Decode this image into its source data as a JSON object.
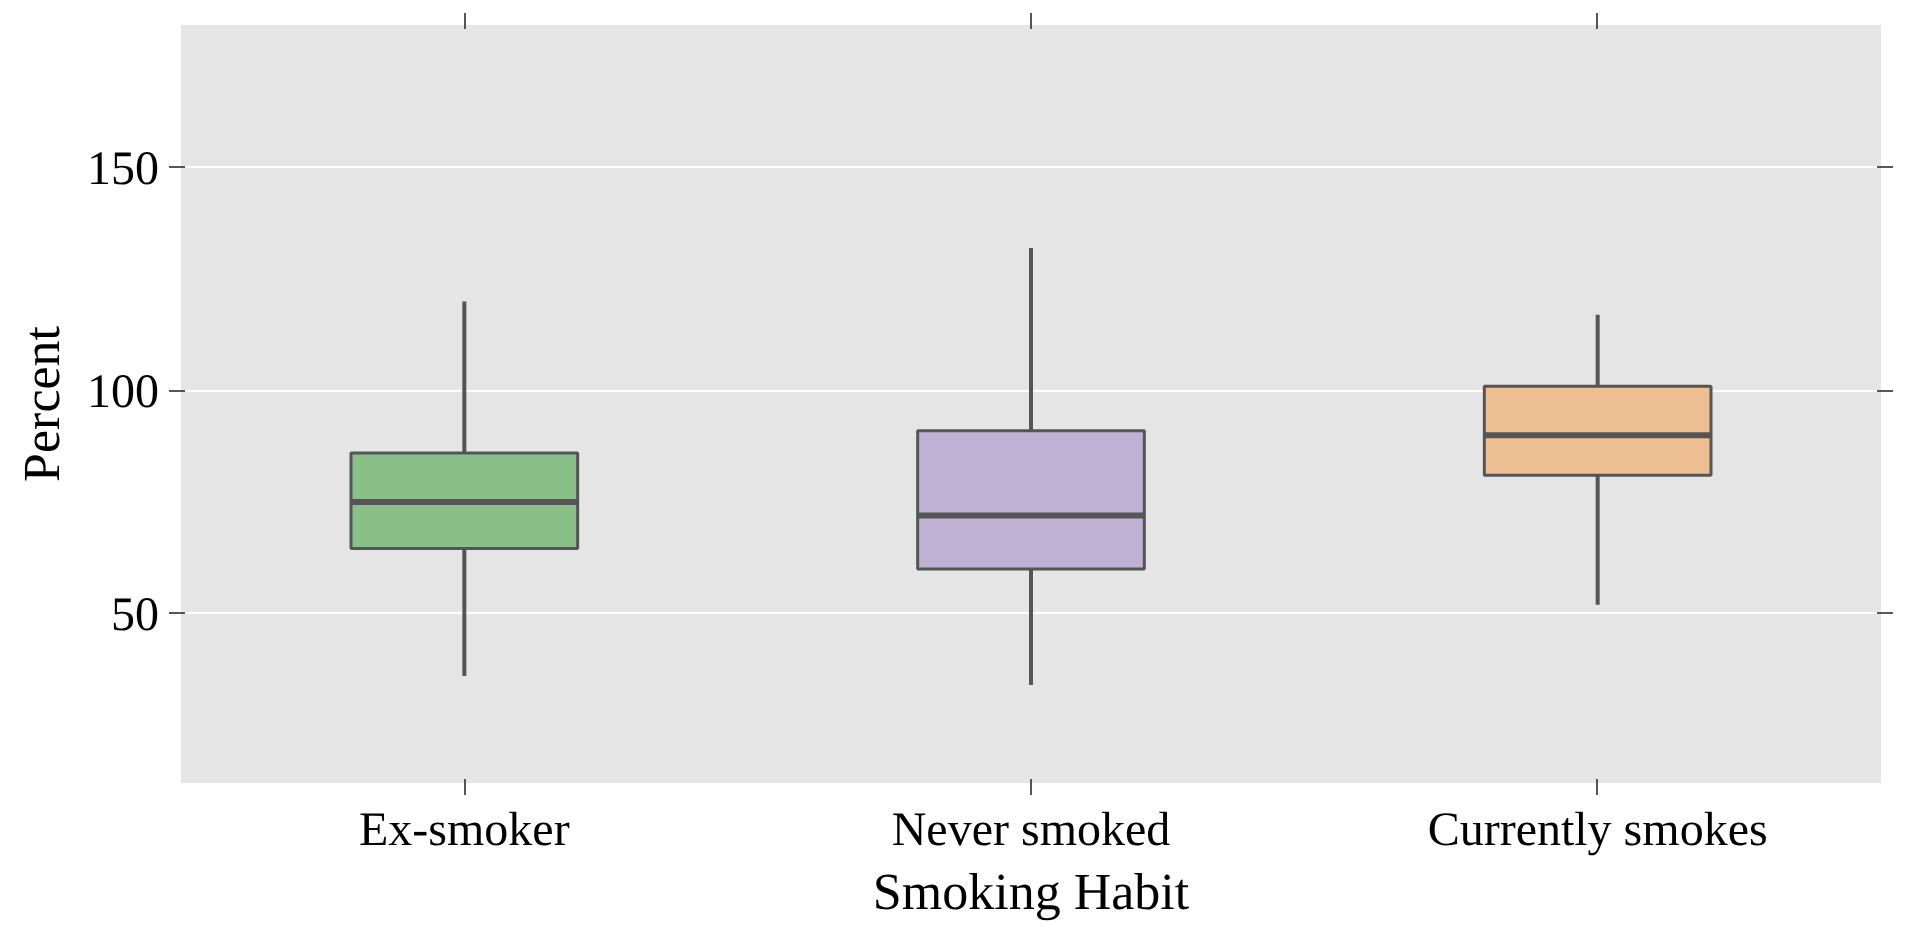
{
  "chart_data": {
    "type": "box",
    "xlabel": "Smoking Habit",
    "ylabel": "Percent",
    "categories": [
      "Ex-smoker",
      "Never smoked",
      "Currently smokes"
    ],
    "colors": [
      "#88c088",
      "#bfb1d4",
      "#eebf93"
    ],
    "boxes": [
      {
        "low": 36,
        "q1": 64.6,
        "median": 75,
        "q3": 86,
        "high": 120
      },
      {
        "low": 34,
        "q1": 60,
        "median": 72,
        "q3": 91,
        "high": 132
      },
      {
        "low": 52,
        "q1": 81,
        "median": 90,
        "q3": 101,
        "high": 117
      }
    ],
    "ylim": [
      12,
      182
    ],
    "yticks": [
      50,
      100,
      150
    ],
    "grid": "y"
  }
}
